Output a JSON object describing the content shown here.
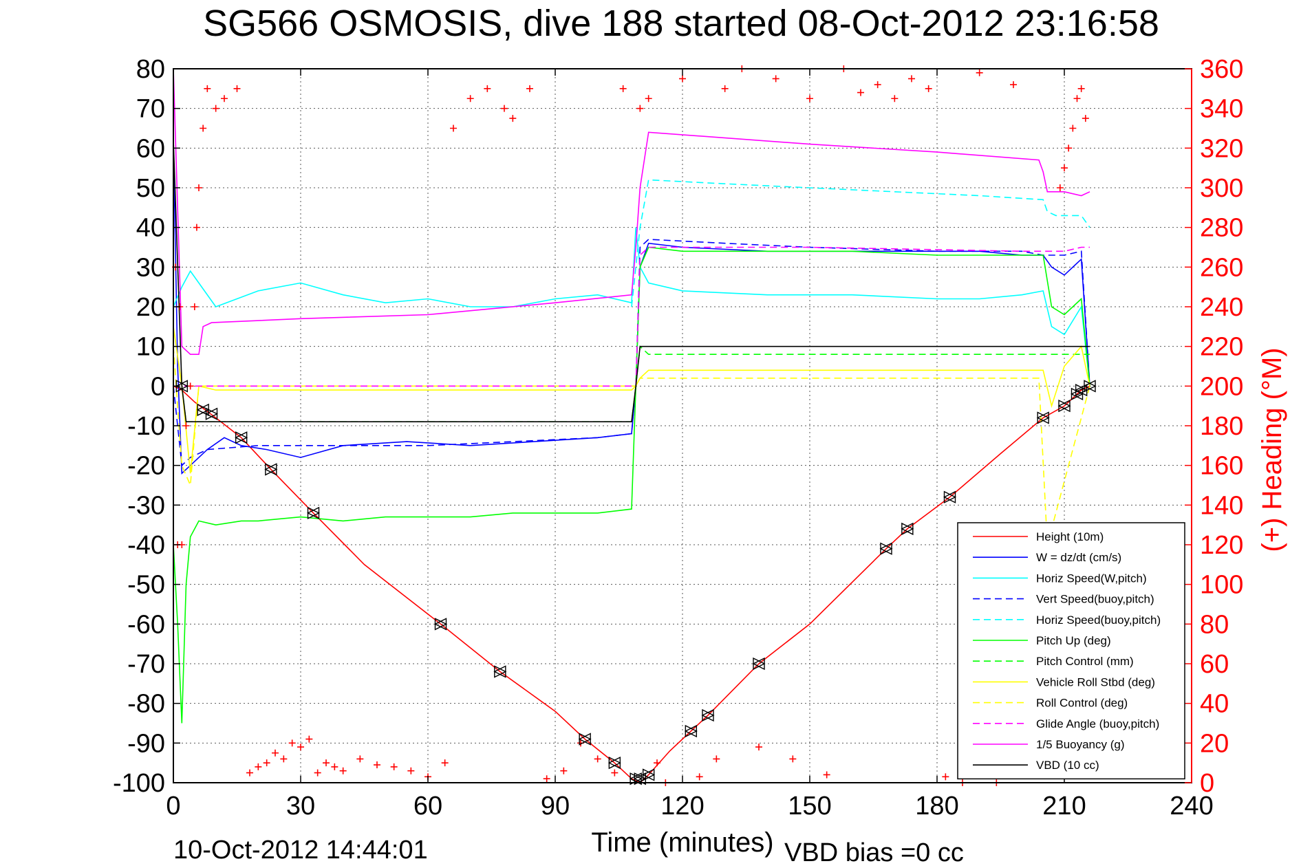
{
  "chart_data": {
    "type": "line",
    "title": "SG566 OSMOSIS, dive 188 started 08-Oct-2012 23:16:58",
    "xlabel": "Time (minutes)",
    "ylabel": "",
    "y2label": "(+) Heading (°M)",
    "xlim": [
      0,
      240
    ],
    "ylim": [
      -100,
      80
    ],
    "y2lim": [
      0,
      360
    ],
    "xticks": [
      0,
      30,
      60,
      90,
      120,
      150,
      180,
      210,
      240
    ],
    "yticks": [
      -100,
      -90,
      -80,
      -70,
      -60,
      -50,
      -40,
      -30,
      -20,
      -10,
      0,
      10,
      20,
      30,
      40,
      50,
      60,
      70,
      80
    ],
    "y2ticks": [
      0,
      20,
      40,
      60,
      80,
      100,
      120,
      140,
      160,
      180,
      200,
      220,
      240,
      260,
      280,
      300,
      320,
      340,
      360
    ],
    "grid": true,
    "legend_position": "bottom-right",
    "footer_left": "10-Oct-2012 14:44:01",
    "footer_right": "VBD bias =0 cc",
    "colors": {
      "red": "#ff0000",
      "blue": "#0000ff",
      "cyan": "#00ffff",
      "green": "#00ff00",
      "yellow": "#ffff00",
      "magenta": "#ff00ff",
      "black": "#000000",
      "axes": "#000000",
      "grid": "#555555"
    },
    "series": [
      {
        "name": "Height (10m)",
        "color": "#ff0000",
        "style": "solid",
        "x": [
          0,
          2,
          5,
          10,
          16,
          23,
          33,
          45,
          63,
          77,
          90,
          97,
          104,
          108,
          110,
          112,
          117,
          122,
          126,
          138,
          150,
          168,
          173,
          183,
          195,
          205,
          210,
          213,
          214,
          216
        ],
        "y": [
          0,
          -1,
          -4,
          -8,
          -13,
          -21,
          -32,
          -45,
          -60,
          -72,
          -82,
          -89,
          -95,
          -99,
          -100,
          -98,
          -92,
          -87,
          -83,
          -70,
          -60,
          -41,
          -36,
          -28,
          -17,
          -8,
          -5,
          -2,
          -1,
          0
        ]
      },
      {
        "name": "W = dz/dt (cm/s)",
        "color": "#0000ff",
        "style": "solid",
        "x": [
          0,
          1,
          2,
          4,
          8,
          12,
          16,
          22,
          30,
          40,
          55,
          70,
          85,
          100,
          108,
          109,
          110,
          112,
          120,
          140,
          160,
          180,
          190,
          200,
          205,
          207,
          210,
          214,
          216
        ],
        "y": [
          62,
          5,
          -22,
          -20,
          -16,
          -13,
          -15,
          -16,
          -18,
          -15,
          -14,
          -15,
          -14,
          -13,
          -12,
          0,
          30,
          36,
          35,
          34,
          34,
          34,
          34,
          33,
          33,
          30,
          28,
          32,
          0
        ]
      },
      {
        "name": "Horiz Speed(W,pitch)",
        "color": "#00ffff",
        "style": "solid",
        "x": [
          0,
          2,
          4,
          6,
          10,
          20,
          30,
          40,
          50,
          60,
          70,
          80,
          90,
          100,
          108,
          109,
          110,
          112,
          120,
          140,
          160,
          180,
          190,
          200,
          205,
          207,
          210,
          214,
          216
        ],
        "y": [
          20,
          25,
          29,
          26,
          20,
          24,
          26,
          23,
          21,
          22,
          20,
          20,
          22,
          23,
          21,
          40,
          30,
          26,
          24,
          23,
          23,
          22,
          22,
          23,
          24,
          15,
          13,
          20,
          0
        ]
      },
      {
        "name": "Vert Speed(buoy,pitch)",
        "color": "#0000ff",
        "style": "dashed",
        "x": [
          0,
          2,
          4,
          8,
          20,
          40,
          60,
          80,
          100,
          108,
          109,
          110,
          112,
          130,
          150,
          180,
          200,
          205,
          210,
          214,
          216
        ],
        "y": [
          0,
          -20,
          -18,
          -16,
          -15,
          -15,
          -15,
          -14,
          -13,
          -12,
          0,
          35,
          37,
          36,
          35,
          34,
          34,
          33,
          33,
          34,
          0
        ]
      },
      {
        "name": "Horiz Speed(buoy,pitch)",
        "color": "#00ffff",
        "style": "dashed",
        "x": [
          108,
          110,
          112,
          130,
          150,
          170,
          190,
          205,
          206,
          208,
          214,
          216
        ],
        "y": [
          20,
          40,
          52,
          51,
          50,
          49,
          48,
          47,
          44,
          43,
          43,
          40
        ]
      },
      {
        "name": "Pitch Up (deg)",
        "color": "#00ff00",
        "style": "solid",
        "x": [
          0,
          1,
          2,
          3,
          4,
          6,
          10,
          16,
          20,
          30,
          40,
          50,
          60,
          70,
          80,
          90,
          100,
          108,
          109,
          110,
          112,
          120,
          140,
          160,
          180,
          200,
          205,
          207,
          210,
          214,
          216
        ],
        "y": [
          -40,
          -60,
          -85,
          -50,
          -38,
          -34,
          -35,
          -34,
          -34,
          -33,
          -34,
          -33,
          -33,
          -33,
          -32,
          -32,
          -32,
          -31,
          0,
          30,
          35,
          34,
          34,
          34,
          33,
          33,
          33,
          20,
          18,
          22,
          0
        ]
      },
      {
        "name": "Pitch Control (mm)",
        "color": "#00ff00",
        "style": "dashed",
        "x": [
          0,
          2,
          3,
          108,
          109,
          110,
          112,
          216
        ],
        "y": [
          0,
          0,
          -9,
          -9,
          0,
          10,
          8,
          8
        ]
      },
      {
        "name": "Vehicle Roll Stbd (deg)",
        "color": "#ffff00",
        "style": "solid",
        "x": [
          0,
          2,
          4,
          6,
          10,
          20,
          40,
          60,
          80,
          100,
          108,
          109,
          110,
          112,
          130,
          150,
          170,
          190,
          205,
          207,
          210,
          214,
          216
        ],
        "y": [
          15,
          0,
          -22,
          0,
          -1,
          -1,
          -1,
          -1,
          -1,
          -1,
          -1,
          0,
          2,
          4,
          4,
          4,
          4,
          4,
          4,
          -5,
          5,
          10,
          0
        ]
      },
      {
        "name": "Roll Control (deg)",
        "color": "#ffff00",
        "style": "dashed",
        "x": [
          0,
          2,
          4,
          6,
          10,
          108,
          109,
          110,
          112,
          204,
          206,
          216
        ],
        "y": [
          10,
          -20,
          -25,
          0,
          0,
          0,
          0,
          2,
          2,
          2,
          -40,
          0
        ]
      },
      {
        "name": "Glide Angle (buoy,pitch)",
        "color": "#ff00ff",
        "style": "dashed",
        "x": [
          0,
          108,
          109,
          110,
          112,
          150,
          200,
          210,
          214,
          216
        ],
        "y": [
          0,
          0,
          0,
          33,
          35,
          35,
          34,
          34,
          35,
          35
        ]
      },
      {
        "name": "1/5 Buoyancy (g)",
        "color": "#ff00ff",
        "style": "solid",
        "x": [
          0,
          2,
          4,
          6,
          7,
          9,
          30,
          60,
          90,
          108,
          109,
          110,
          112,
          150,
          180,
          204,
          205,
          206,
          210,
          214,
          216
        ],
        "y": [
          80,
          10,
          8,
          8,
          15,
          16,
          17,
          18,
          21,
          23,
          35,
          50,
          64,
          61,
          59,
          57,
          54,
          49,
          49,
          48,
          49
        ]
      },
      {
        "name": "VBD (10 cc)",
        "color": "#000000",
        "style": "solid",
        "x": [
          0,
          2,
          3,
          4,
          108,
          109,
          110,
          112,
          216
        ],
        "y": [
          62,
          0,
          -9,
          -9,
          -9,
          0,
          10,
          10,
          10
        ]
      }
    ],
    "markers": {
      "x": [
        2,
        7,
        9,
        16,
        23,
        33,
        63,
        77,
        97,
        104,
        109,
        110,
        112,
        122,
        126,
        138,
        168,
        173,
        183,
        205,
        210,
        213,
        214,
        216
      ],
      "y": [
        0,
        -6,
        -7,
        -13,
        -21,
        -32,
        -60,
        -72,
        -89,
        -95,
        -99,
        -99,
        -98,
        -87,
        -83,
        -70,
        -41,
        -36,
        -28,
        -8,
        -5,
        -2,
        -1,
        0
      ]
    },
    "heading_points": {
      "color": "#ff0000",
      "x": [
        0.5,
        1,
        1.5,
        2,
        3,
        4,
        5,
        5.5,
        6,
        7,
        8,
        10,
        12,
        15,
        18,
        20,
        22,
        24,
        26,
        28,
        30,
        32,
        34,
        36,
        38,
        40,
        44,
        48,
        52,
        56,
        60,
        64,
        66,
        70,
        74,
        78,
        80,
        84,
        88,
        92,
        96,
        100,
        104,
        106,
        110,
        112,
        114,
        116,
        120,
        124,
        128,
        130,
        134,
        138,
        142,
        146,
        150,
        154,
        158,
        162,
        166,
        170,
        174,
        178,
        182,
        186,
        190,
        194,
        198,
        202,
        205,
        207,
        209,
        210,
        211,
        212,
        213,
        214,
        215
      ],
      "y": [
        260,
        120,
        240,
        120,
        180,
        200,
        240,
        280,
        300,
        330,
        350,
        340,
        345,
        350,
        5,
        8,
        10,
        15,
        12,
        20,
        18,
        22,
        5,
        10,
        8,
        6,
        12,
        9,
        8,
        6,
        3,
        10,
        330,
        345,
        350,
        340,
        335,
        350,
        2,
        6,
        20,
        12,
        5,
        350,
        340,
        345,
        10,
        0,
        355,
        3,
        12,
        350,
        360,
        18,
        355,
        12,
        345,
        4,
        360,
        348,
        352,
        345,
        355,
        350,
        3,
        0,
        358,
        0,
        352,
        6,
        5,
        8,
        300,
        310,
        320,
        330,
        345,
        350,
        335
      ]
    }
  }
}
